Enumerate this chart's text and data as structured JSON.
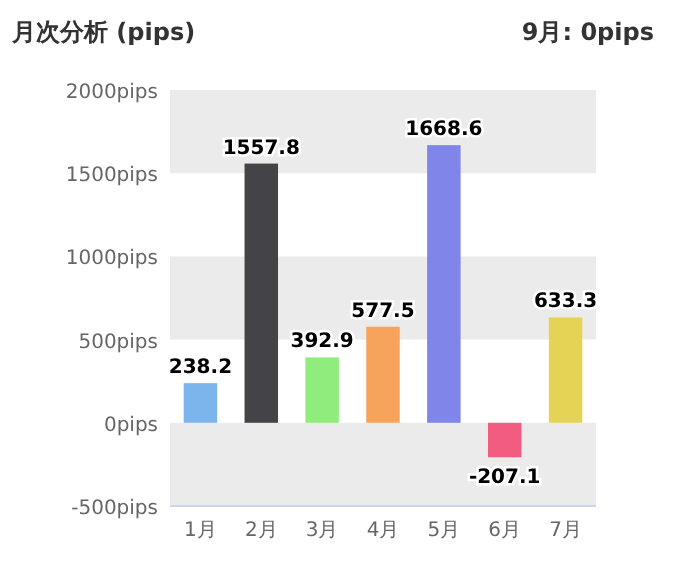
{
  "chart_data": {
    "type": "bar",
    "title": "月次分析 (pips)",
    "subtitle": "9月: 0pips",
    "categories": [
      "1月",
      "2月",
      "3月",
      "4月",
      "5月",
      "6月",
      "7月"
    ],
    "values": [
      238.2,
      1557.8,
      392.9,
      577.5,
      1668.6,
      -207.1,
      633.3
    ],
    "colors": [
      "#7cb5ec",
      "#434348",
      "#90ed7d",
      "#f7a35c",
      "#8085e9",
      "#f15c80",
      "#e4d354"
    ],
    "ylim": [
      -500,
      2000
    ],
    "yticks": [
      {
        "value": -500,
        "label": "-500pips"
      },
      {
        "value": 0,
        "label": "0pips"
      },
      {
        "value": 500,
        "label": "500pips"
      },
      {
        "value": 1000,
        "label": "1000pips"
      },
      {
        "value": 1500,
        "label": "1500pips"
      },
      {
        "value": 2000,
        "label": "2000pips"
      }
    ],
    "bands": [
      {
        "axis": "y",
        "from": -500,
        "to": 0,
        "color": "#ebebeb"
      },
      {
        "axis": "y",
        "from": 500,
        "to": 1000,
        "color": "#ebebeb"
      },
      {
        "axis": "y",
        "from": 1500,
        "to": 2000,
        "color": "#ebebeb"
      }
    ],
    "data_labels": true
  }
}
